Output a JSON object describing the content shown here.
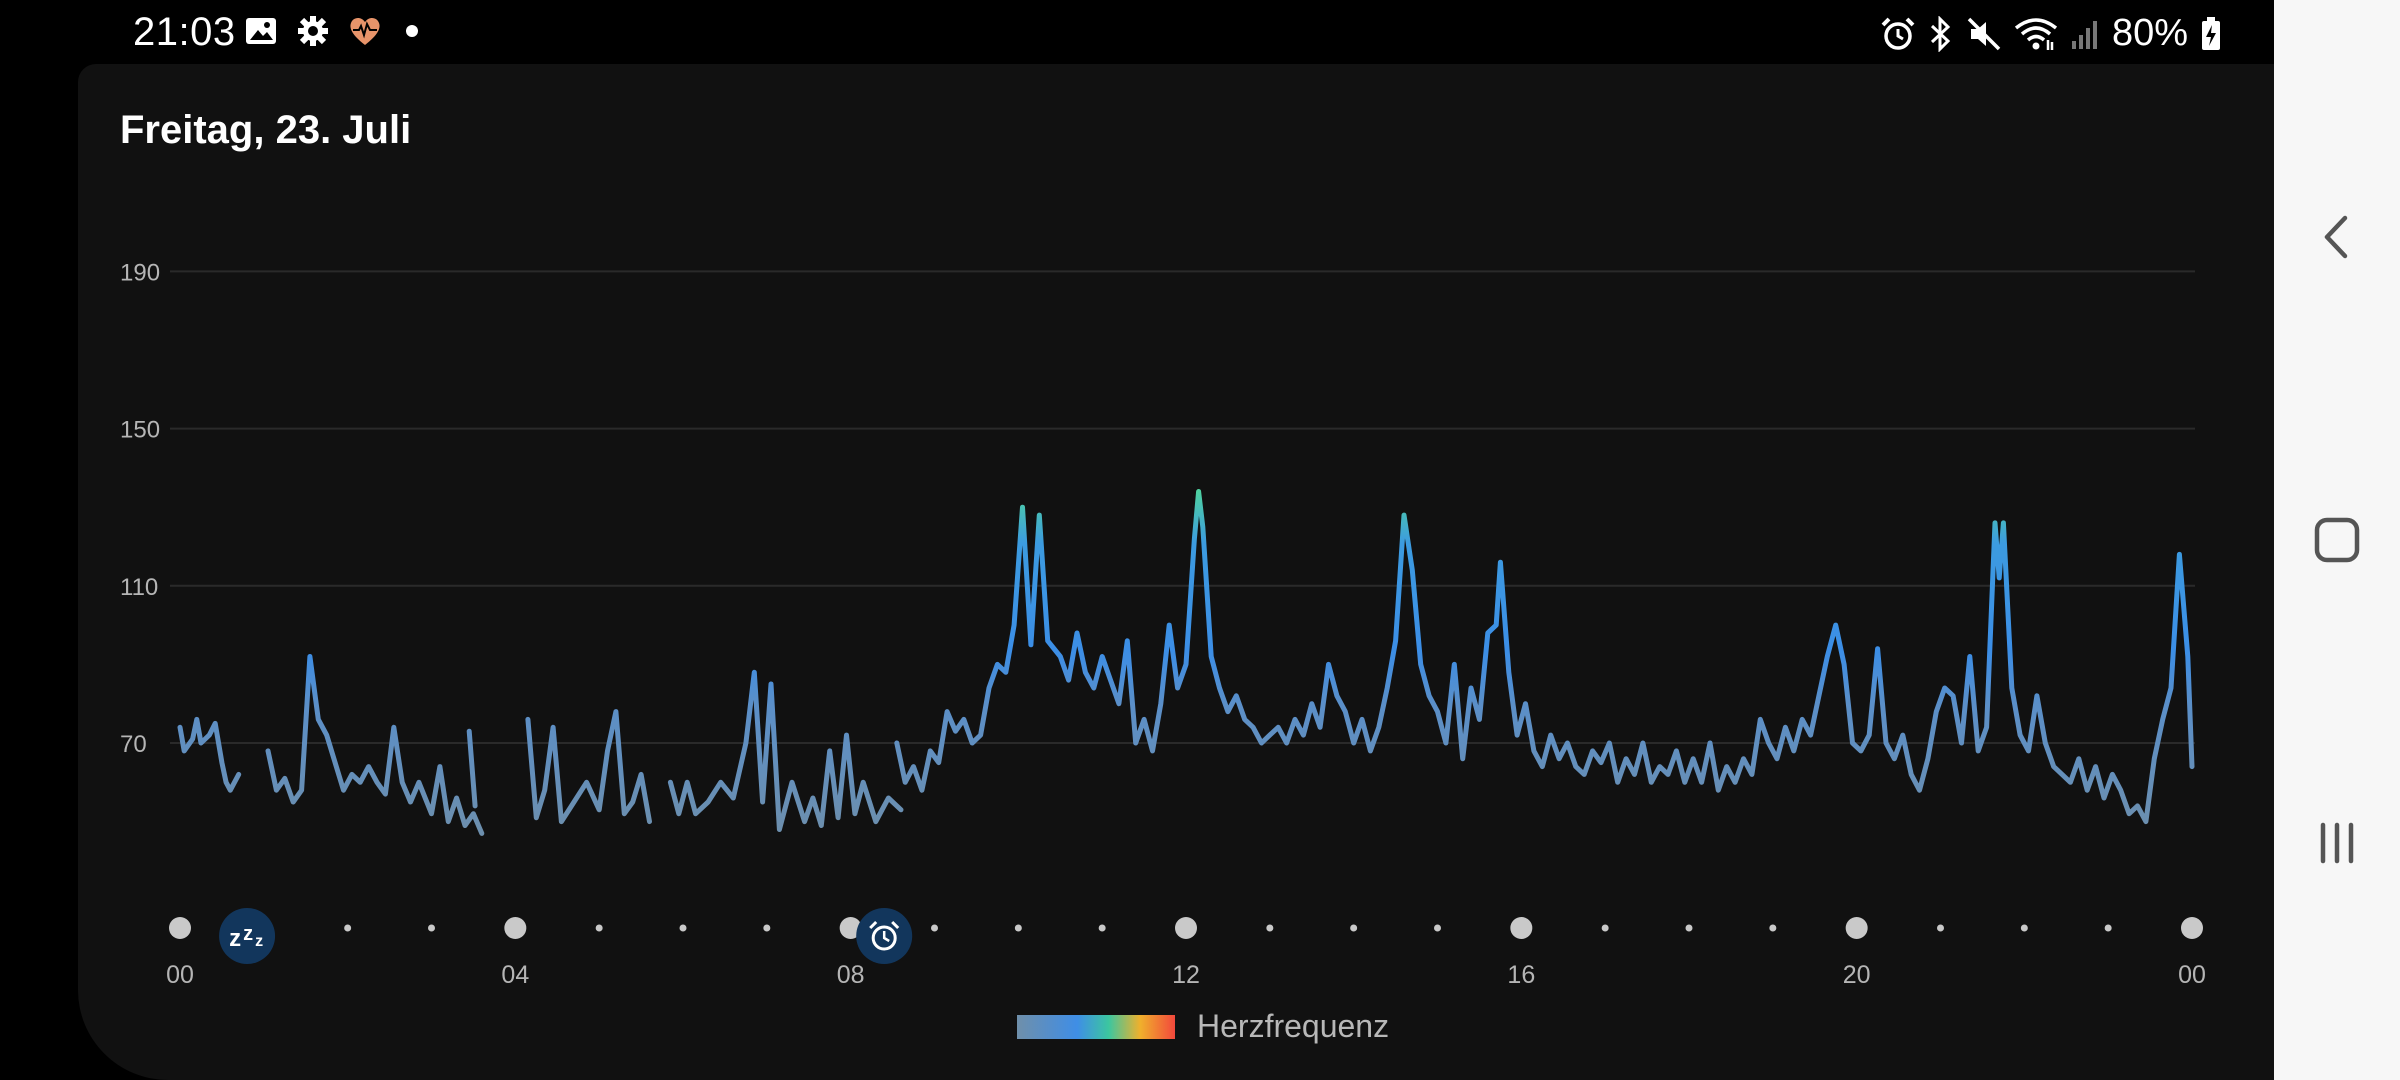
{
  "status_bar": {
    "time": "21:03",
    "left_icons": [
      "image-icon",
      "gear-icon",
      "heart-rate-icon",
      "notification-dot"
    ],
    "right_icons": [
      "alarm-icon",
      "bluetooth-icon",
      "mute-icon",
      "wifi-icon",
      "signal-icon",
      "battery-charging-icon"
    ],
    "battery": "80%"
  },
  "card": {
    "title": "Freitag, 23. Juli"
  },
  "legend": {
    "label": "Herzfrequenz"
  },
  "markers": {
    "sleep_icon": "sleep-zzz-icon",
    "alarm_icon": "alarm-clock-icon"
  },
  "nav": {
    "back": "back-icon",
    "home": "home-icon",
    "recents": "recents-icon"
  },
  "colors": {
    "low": "#6f8faa",
    "mid": "#3f8ee6",
    "high": "#3cc6a0",
    "background": "#111111"
  },
  "chart_data": {
    "type": "line",
    "title": "",
    "ylabel": "",
    "xlabel": "",
    "y_ticks": [
      70,
      110,
      150,
      190
    ],
    "x_ticks": [
      "00",
      "04",
      "08",
      "12",
      "16",
      "20",
      "00"
    ],
    "xlim": [
      0,
      24
    ],
    "ylim": [
      50,
      200
    ],
    "grid": true,
    "legend": "bottom-center",
    "series": [
      {
        "name": "Herzfrequenz",
        "segments": [
          [
            [
              0.0,
              74
            ],
            [
              0.05,
              68
            ],
            [
              0.15,
              71
            ],
            [
              0.2,
              76
            ],
            [
              0.25,
              70
            ],
            [
              0.35,
              72
            ],
            [
              0.42,
              75
            ],
            [
              0.5,
              65
            ],
            [
              0.55,
              60
            ],
            [
              0.6,
              58
            ],
            [
              0.7,
              62
            ]
          ],
          [
            [
              1.05,
              68
            ],
            [
              1.15,
              58
            ],
            [
              1.25,
              61
            ],
            [
              1.35,
              55
            ],
            [
              1.45,
              58
            ],
            [
              1.55,
              92
            ],
            [
              1.65,
              76
            ],
            [
              1.75,
              72
            ],
            [
              1.85,
              65
            ],
            [
              1.95,
              58
            ],
            [
              2.05,
              62
            ],
            [
              2.15,
              60
            ],
            [
              2.25,
              64
            ],
            [
              2.35,
              60
            ],
            [
              2.45,
              57
            ],
            [
              2.55,
              74
            ],
            [
              2.65,
              60
            ],
            [
              2.75,
              55
            ],
            [
              2.85,
              60
            ],
            [
              3.0,
              52
            ],
            [
              3.1,
              64
            ],
            [
              3.2,
              50
            ],
            [
              3.3,
              56
            ],
            [
              3.4,
              49
            ],
            [
              3.5,
              52
            ],
            [
              3.6,
              47
            ]
          ],
          [
            [
              3.45,
              73
            ],
            [
              3.52,
              54
            ]
          ],
          [
            [
              4.15,
              76
            ],
            [
              4.25,
              51
            ],
            [
              4.35,
              58
            ],
            [
              4.45,
              74
            ],
            [
              4.55,
              50
            ],
            [
              4.7,
              55
            ],
            [
              4.85,
              60
            ],
            [
              5.0,
              53
            ],
            [
              5.1,
              68
            ],
            [
              5.2,
              78
            ],
            [
              5.3,
              52
            ],
            [
              5.4,
              55
            ],
            [
              5.5,
              62
            ],
            [
              5.6,
              50
            ]
          ],
          [
            [
              5.85,
              60
            ],
            [
              5.95,
              52
            ],
            [
              6.05,
              60
            ],
            [
              6.15,
              52
            ],
            [
              6.3,
              55
            ],
            [
              6.45,
              60
            ],
            [
              6.6,
              56
            ],
            [
              6.75,
              70
            ],
            [
              6.85,
              88
            ],
            [
              6.95,
              55
            ],
            [
              7.05,
              85
            ],
            [
              7.15,
              48
            ],
            [
              7.3,
              60
            ],
            [
              7.45,
              50
            ],
            [
              7.55,
              56
            ],
            [
              7.65,
              49
            ],
            [
              7.75,
              68
            ],
            [
              7.85,
              51
            ],
            [
              7.95,
              72
            ],
            [
              8.05,
              52
            ],
            [
              8.15,
              60
            ],
            [
              8.3,
              50
            ],
            [
              8.45,
              56
            ],
            [
              8.6,
              53
            ]
          ],
          [
            [
              8.55,
              70
            ],
            [
              8.65,
              60
            ],
            [
              8.75,
              64
            ],
            [
              8.85,
              58
            ],
            [
              8.95,
              68
            ],
            [
              9.05,
              65
            ],
            [
              9.15,
              78
            ],
            [
              9.25,
              73
            ],
            [
              9.35,
              76
            ],
            [
              9.45,
              70
            ],
            [
              9.55,
              72
            ],
            [
              9.65,
              84
            ],
            [
              9.75,
              90
            ],
            [
              9.85,
              88
            ],
            [
              9.95,
              100
            ],
            [
              10.05,
              130
            ],
            [
              10.15,
              95
            ],
            [
              10.25,
              128
            ],
            [
              10.35,
              96
            ],
            [
              10.5,
              92
            ],
            [
              10.6,
              86
            ],
            [
              10.7,
              98
            ],
            [
              10.8,
              88
            ],
            [
              10.9,
              84
            ],
            [
              11.0,
              92
            ],
            [
              11.1,
              86
            ],
            [
              11.2,
              80
            ],
            [
              11.3,
              96
            ],
            [
              11.4,
              70
            ],
            [
              11.5,
              76
            ],
            [
              11.6,
              68
            ],
            [
              11.7,
              80
            ],
            [
              11.8,
              100
            ],
            [
              11.9,
              84
            ],
            [
              12.0,
              90
            ],
            [
              12.1,
              122
            ],
            [
              12.15,
              134
            ],
            [
              12.2,
              125
            ],
            [
              12.3,
              92
            ],
            [
              12.4,
              84
            ],
            [
              12.5,
              78
            ],
            [
              12.6,
              82
            ],
            [
              12.7,
              76
            ],
            [
              12.8,
              74
            ],
            [
              12.9,
              70
            ],
            [
              13.0,
              72
            ],
            [
              13.1,
              74
            ],
            [
              13.2,
              70
            ],
            [
              13.3,
              76
            ],
            [
              13.4,
              72
            ],
            [
              13.5,
              80
            ],
            [
              13.6,
              74
            ],
            [
              13.7,
              90
            ],
            [
              13.8,
              82
            ],
            [
              13.9,
              78
            ],
            [
              14.0,
              70
            ],
            [
              14.1,
              76
            ],
            [
              14.2,
              68
            ],
            [
              14.3,
              74
            ],
            [
              14.4,
              84
            ],
            [
              14.5,
              96
            ],
            [
              14.6,
              128
            ],
            [
              14.7,
              114
            ],
            [
              14.8,
              90
            ],
            [
              14.9,
              82
            ],
            [
              15.0,
              78
            ],
            [
              15.1,
              70
            ],
            [
              15.2,
              90
            ],
            [
              15.3,
              66
            ],
            [
              15.4,
              84
            ],
            [
              15.5,
              76
            ],
            [
              15.6,
              98
            ],
            [
              15.7,
              100
            ],
            [
              15.75,
              116
            ],
            [
              15.85,
              88
            ],
            [
              15.95,
              72
            ],
            [
              16.05,
              80
            ],
            [
              16.15,
              68
            ],
            [
              16.25,
              64
            ],
            [
              16.35,
              72
            ],
            [
              16.45,
              66
            ],
            [
              16.55,
              70
            ],
            [
              16.65,
              64
            ],
            [
              16.75,
              62
            ],
            [
              16.85,
              68
            ],
            [
              16.95,
              65
            ],
            [
              17.05,
              70
            ],
            [
              17.15,
              60
            ],
            [
              17.25,
              66
            ],
            [
              17.35,
              62
            ],
            [
              17.45,
              70
            ],
            [
              17.55,
              60
            ],
            [
              17.65,
              64
            ],
            [
              17.75,
              62
            ],
            [
              17.85,
              68
            ],
            [
              17.95,
              60
            ],
            [
              18.05,
              66
            ],
            [
              18.15,
              60
            ],
            [
              18.25,
              70
            ],
            [
              18.35,
              58
            ],
            [
              18.45,
              64
            ],
            [
              18.55,
              60
            ],
            [
              18.65,
              66
            ],
            [
              18.75,
              62
            ],
            [
              18.85,
              76
            ],
            [
              18.95,
              70
            ],
            [
              19.05,
              66
            ],
            [
              19.15,
              74
            ],
            [
              19.25,
              68
            ],
            [
              19.35,
              76
            ],
            [
              19.45,
              72
            ],
            [
              19.55,
              82
            ],
            [
              19.65,
              92
            ],
            [
              19.75,
              100
            ],
            [
              19.85,
              90
            ],
            [
              19.95,
              70
            ],
            [
              20.05,
              68
            ],
            [
              20.15,
              72
            ],
            [
              20.25,
              94
            ],
            [
              20.35,
              70
            ],
            [
              20.45,
              66
            ],
            [
              20.55,
              72
            ],
            [
              20.65,
              62
            ],
            [
              20.75,
              58
            ],
            [
              20.85,
              66
            ],
            [
              20.95,
              78
            ],
            [
              21.05,
              84
            ],
            [
              21.15,
              82
            ],
            [
              21.25,
              70
            ],
            [
              21.35,
              92
            ],
            [
              21.45,
              68
            ],
            [
              21.55,
              74
            ],
            [
              21.65,
              126
            ],
            [
              21.7,
              112
            ],
            [
              21.75,
              126
            ],
            [
              21.85,
              84
            ],
            [
              21.95,
              72
            ],
            [
              22.05,
              68
            ],
            [
              22.15,
              82
            ],
            [
              22.25,
              70
            ],
            [
              22.35,
              64
            ],
            [
              22.45,
              62
            ],
            [
              22.55,
              60
            ],
            [
              22.65,
              66
            ],
            [
              22.75,
              58
            ],
            [
              22.85,
              64
            ],
            [
              22.95,
              56
            ],
            [
              23.05,
              62
            ],
            [
              23.15,
              58
            ],
            [
              23.25,
              52
            ],
            [
              23.35,
              54
            ],
            [
              23.45,
              50
            ],
            [
              23.55,
              66
            ],
            [
              23.65,
              76
            ],
            [
              23.75,
              84
            ],
            [
              23.85,
              118
            ],
            [
              23.95,
              92
            ],
            [
              24.0,
              64
            ]
          ]
        ]
      }
    ],
    "markers": [
      {
        "type": "sleep",
        "x": 0.8
      },
      {
        "type": "alarm",
        "x": 8.4
      }
    ]
  }
}
